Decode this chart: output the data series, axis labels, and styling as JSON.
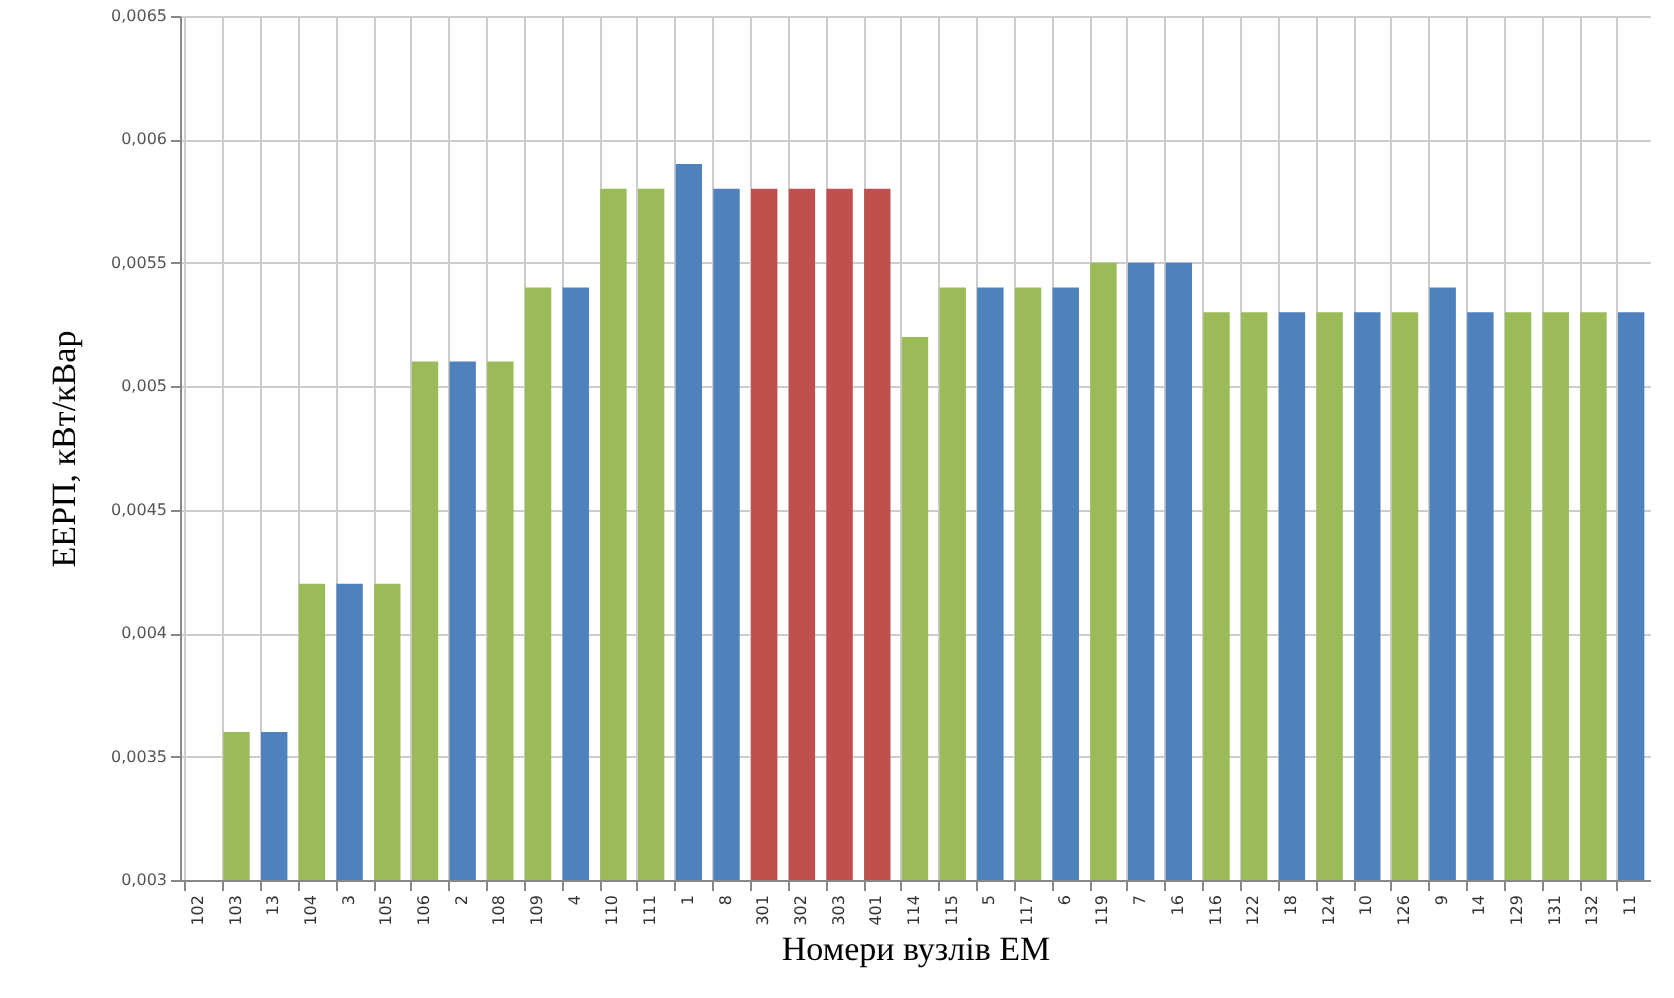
{
  "chart_data": {
    "type": "bar",
    "xlabel": "Номери вузлів ЕМ",
    "ylabel": "ЕЕРП, кВт/кВар",
    "categories": [
      "102",
      "103",
      "13",
      "104",
      "3",
      "105",
      "106",
      "2",
      "108",
      "109",
      "4",
      "110",
      "111",
      "1",
      "8",
      "301",
      "302",
      "303",
      "401",
      "114",
      "115",
      "5",
      "117",
      "6",
      "119",
      "7",
      "16",
      "116",
      "122",
      "18",
      "124",
      "10",
      "126",
      "9",
      "14",
      "129",
      "131",
      "132",
      "11"
    ],
    "values": [
      null,
      0.0036,
      0.0036,
      0.0042,
      0.0042,
      0.0042,
      0.0051,
      0.0051,
      0.0051,
      0.0054,
      0.0054,
      0.0058,
      0.0058,
      0.0059,
      0.0058,
      0.0058,
      0.0058,
      0.0058,
      0.0058,
      0.0052,
      0.0054,
      0.0054,
      0.0054,
      0.0054,
      0.0055,
      0.0055,
      0.0055,
      0.0053,
      0.0053,
      0.0053,
      0.0053,
      0.0053,
      0.0053,
      0.0054,
      0.0053,
      0.0053,
      0.0053,
      0.0053,
      0.0053
    ],
    "colors": [
      "#9bbb59",
      "#9bbb59",
      "#4f81bd",
      "#9bbb59",
      "#4f81bd",
      "#9bbb59",
      "#9bbb59",
      "#4f81bd",
      "#9bbb59",
      "#9bbb59",
      "#4f81bd",
      "#9bbb59",
      "#9bbb59",
      "#4f81bd",
      "#4f81bd",
      "#c0504d",
      "#c0504d",
      "#c0504d",
      "#c0504d",
      "#9bbb59",
      "#9bbb59",
      "#4f81bd",
      "#9bbb59",
      "#4f81bd",
      "#9bbb59",
      "#4f81bd",
      "#4f81bd",
      "#9bbb59",
      "#9bbb59",
      "#4f81bd",
      "#9bbb59",
      "#4f81bd",
      "#9bbb59",
      "#4f81bd",
      "#4f81bd",
      "#9bbb59",
      "#9bbb59",
      "#9bbb59",
      "#4f81bd"
    ],
    "ylim": [
      0.003,
      0.0065
    ],
    "yticks": [
      {
        "value": 0.003,
        "label": "0,003"
      },
      {
        "value": 0.0035,
        "label": "0,0035"
      },
      {
        "value": 0.004,
        "label": "0,004"
      },
      {
        "value": 0.0045,
        "label": "0,0045"
      },
      {
        "value": 0.005,
        "label": "0,005"
      },
      {
        "value": 0.0055,
        "label": "0,0055"
      },
      {
        "value": 0.006,
        "label": "0,006"
      },
      {
        "value": 0.0065,
        "label": "0,0065"
      }
    ],
    "grid": true
  }
}
